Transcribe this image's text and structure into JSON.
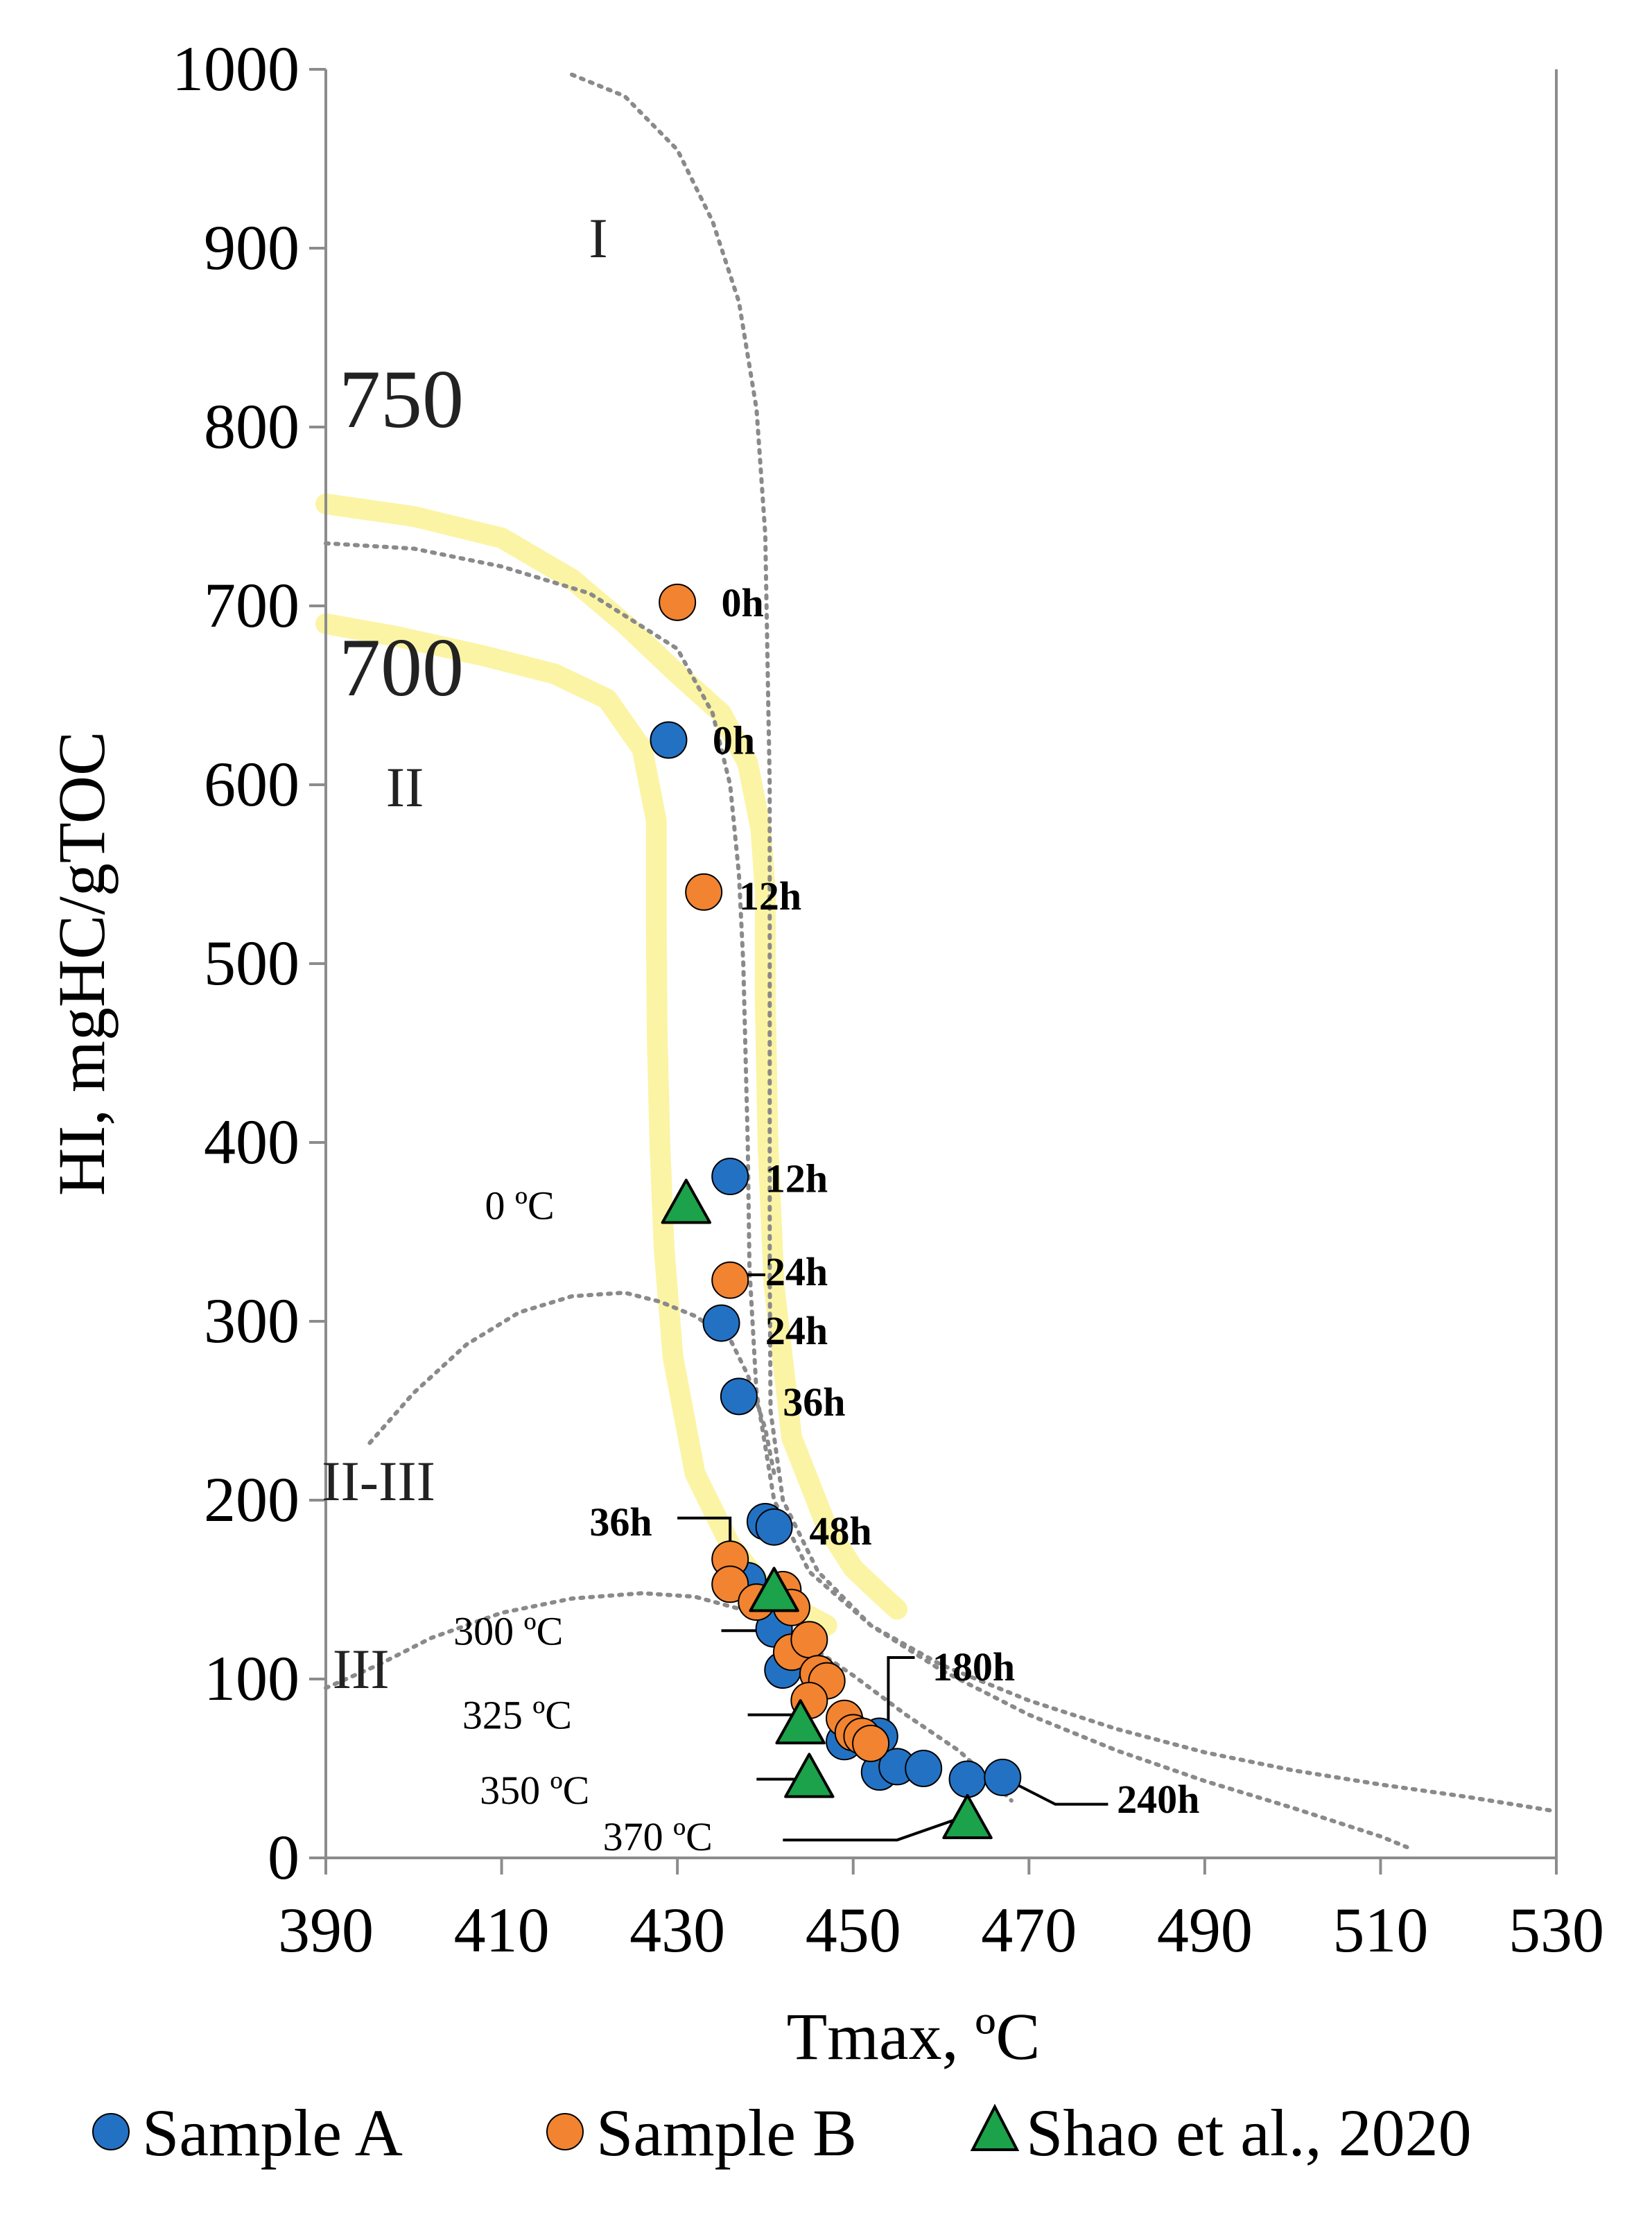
{
  "chart_data": {
    "type": "scatter",
    "title": "",
    "xlabel": "Tmax, ºC",
    "ylabel": "HI, mgHC/gTOC",
    "xlim": [
      390,
      530
    ],
    "ylim": [
      0,
      1000
    ],
    "xticks": [
      "390",
      "410",
      "430",
      "450",
      "470",
      "490",
      "510",
      "530"
    ],
    "yticks": [
      "0",
      "100",
      "200",
      "300",
      "400",
      "500",
      "600",
      "700",
      "800",
      "900",
      "1000"
    ],
    "grid": false,
    "legend_position": "bottom",
    "colors": {
      "sample_a": "#2371c3",
      "sample_b": "#f28330",
      "shao": "#1ba24a",
      "boundary_yellow": "#fbf4a5",
      "boundary_gray": "#8a8a8a"
    },
    "series": [
      {
        "name": "Sample A",
        "marker": "circle",
        "color": "#2371c3",
        "points": [
          {
            "x": 429,
            "y": 625
          },
          {
            "x": 436,
            "y": 381
          },
          {
            "x": 435,
            "y": 299
          },
          {
            "x": 437,
            "y": 258
          },
          {
            "x": 440,
            "y": 188
          },
          {
            "x": 441,
            "y": 185
          },
          {
            "x": 438,
            "y": 155
          },
          {
            "x": 441,
            "y": 128
          },
          {
            "x": 442,
            "y": 105
          },
          {
            "x": 449,
            "y": 65
          },
          {
            "x": 453,
            "y": 68
          },
          {
            "x": 453,
            "y": 48
          },
          {
            "x": 455,
            "y": 51
          },
          {
            "x": 458,
            "y": 50
          },
          {
            "x": 463,
            "y": 44
          },
          {
            "x": 467,
            "y": 45
          }
        ]
      },
      {
        "name": "Sample B",
        "marker": "circle",
        "color": "#f28330",
        "points": [
          {
            "x": 430,
            "y": 702
          },
          {
            "x": 433,
            "y": 540
          },
          {
            "x": 436,
            "y": 323
          },
          {
            "x": 436,
            "y": 167
          },
          {
            "x": 436,
            "y": 153
          },
          {
            "x": 439,
            "y": 143
          },
          {
            "x": 442,
            "y": 150
          },
          {
            "x": 443,
            "y": 140
          },
          {
            "x": 443,
            "y": 115
          },
          {
            "x": 445,
            "y": 122
          },
          {
            "x": 446,
            "y": 103
          },
          {
            "x": 447,
            "y": 99
          },
          {
            "x": 445,
            "y": 88
          },
          {
            "x": 449,
            "y": 78
          },
          {
            "x": 450,
            "y": 70
          },
          {
            "x": 451,
            "y": 68
          },
          {
            "x": 452,
            "y": 64
          }
        ]
      },
      {
        "name": "Shao et al., 2020",
        "marker": "triangle",
        "color": "#1ba24a",
        "points": [
          {
            "x": 431,
            "y": 365
          },
          {
            "x": 441,
            "y": 148
          },
          {
            "x": 444,
            "y": 74
          },
          {
            "x": 445,
            "y": 44
          },
          {
            "x": 463,
            "y": 21
          }
        ]
      }
    ],
    "regions": [
      "I",
      "II",
      "II-III",
      "III"
    ],
    "hi_lines": [
      "750",
      "700"
    ],
    "point_labels": [
      {
        "text": "0h",
        "x": 435,
        "y": 702
      },
      {
        "text": "0h",
        "x": 434,
        "y": 625
      },
      {
        "text": "12h",
        "x": 437,
        "y": 538
      },
      {
        "text": "12h",
        "x": 440,
        "y": 380
      },
      {
        "text": "24h",
        "x": 440,
        "y": 328
      },
      {
        "text": "24h",
        "x": 440,
        "y": 295
      },
      {
        "text": "36h",
        "x": 442,
        "y": 255
      },
      {
        "text": "36h",
        "x": 420,
        "y": 188
      },
      {
        "text": "48h",
        "x": 445,
        "y": 183
      },
      {
        "text": "180h",
        "x": 459,
        "y": 107
      },
      {
        "text": "240h",
        "x": 480,
        "y": 33
      }
    ],
    "temp_labels": [
      {
        "text": "0 ºC",
        "x": 416,
        "y": 365
      },
      {
        "text": "300 ºC",
        "x": 417,
        "y": 127
      },
      {
        "text": "325 ºC",
        "x": 418,
        "y": 80
      },
      {
        "text": "350 ºC",
        "x": 420,
        "y": 38
      },
      {
        "text": "370 ºC",
        "x": 434,
        "y": 12
      }
    ]
  }
}
